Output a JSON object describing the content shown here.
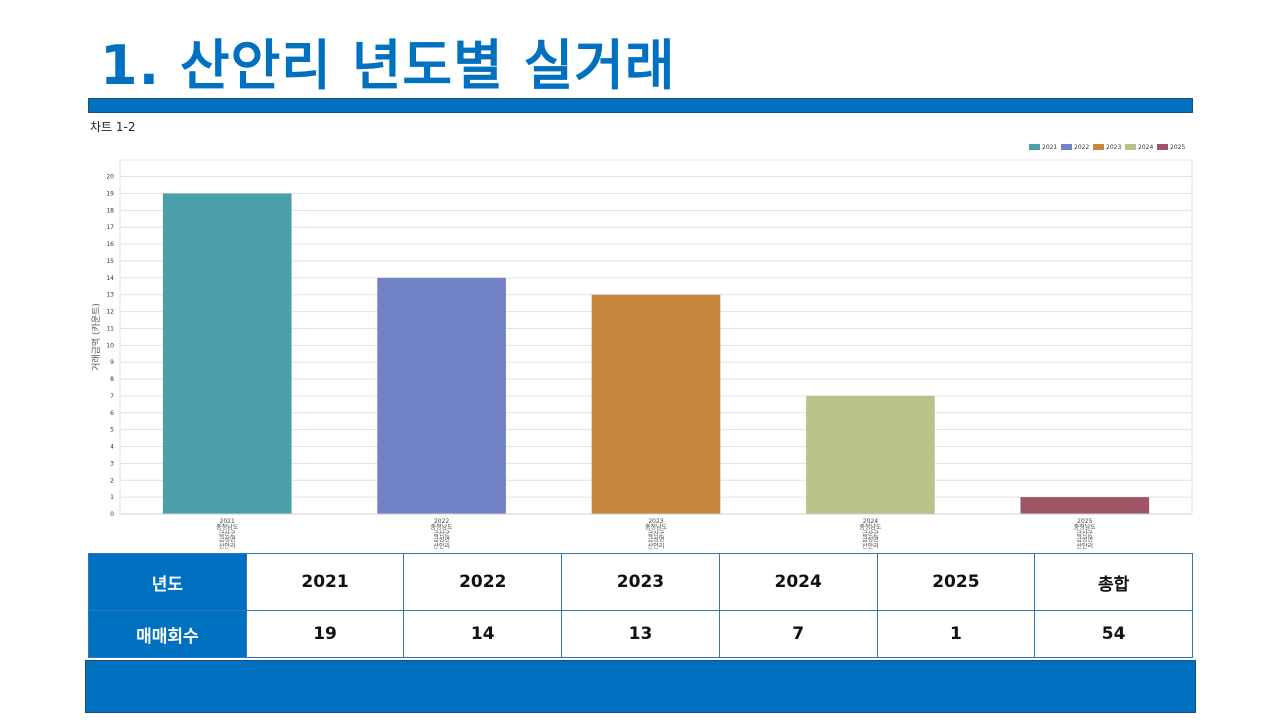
{
  "page": {
    "title": "1. 산안리 년도별 실거래",
    "chart_caption": "차트 1-2"
  },
  "chart_data": {
    "type": "bar",
    "categories": [
      [
        "2021",
        "충청남도",
        "금산군",
        "금성면",
        "산안리"
      ],
      [
        "2022",
        "충청남도",
        "금산군",
        "금성면",
        "산안리"
      ],
      [
        "2023",
        "충청남도",
        "금산군",
        "금성면",
        "산안리"
      ],
      [
        "2024",
        "충청남도",
        "금산군",
        "금성면",
        "산안리"
      ],
      [
        "2025",
        "충청남도",
        "금산군",
        "금성면",
        "산안리"
      ]
    ],
    "values": [
      19,
      14,
      13,
      7,
      1
    ],
    "colors": [
      "#4a9fa8",
      "#7282c6",
      "#c4873c",
      "#b9c389",
      "#9e5566"
    ],
    "legend": [
      "2021",
      "2022",
      "2023",
      "2024",
      "2025"
    ],
    "legend_position": "top-right",
    "ylabel": "거래금액 (카운트)",
    "xlabel": "",
    "ylim": [
      0,
      20
    ],
    "yticks": [
      0,
      1,
      2,
      3,
      4,
      5,
      6,
      7,
      8,
      9,
      10,
      11,
      12,
      13,
      14,
      15,
      16,
      17,
      18,
      19,
      20
    ],
    "grid": true
  },
  "table": {
    "row_header_1": "년도",
    "row_header_2": "매매회수",
    "years": [
      "2021",
      "2022",
      "2023",
      "2024",
      "2025",
      "총합"
    ],
    "counts": [
      "19",
      "14",
      "13",
      "7",
      "1",
      "54"
    ]
  },
  "colors": {
    "accent": "#0070c0",
    "table_border": "#2e75b6"
  }
}
